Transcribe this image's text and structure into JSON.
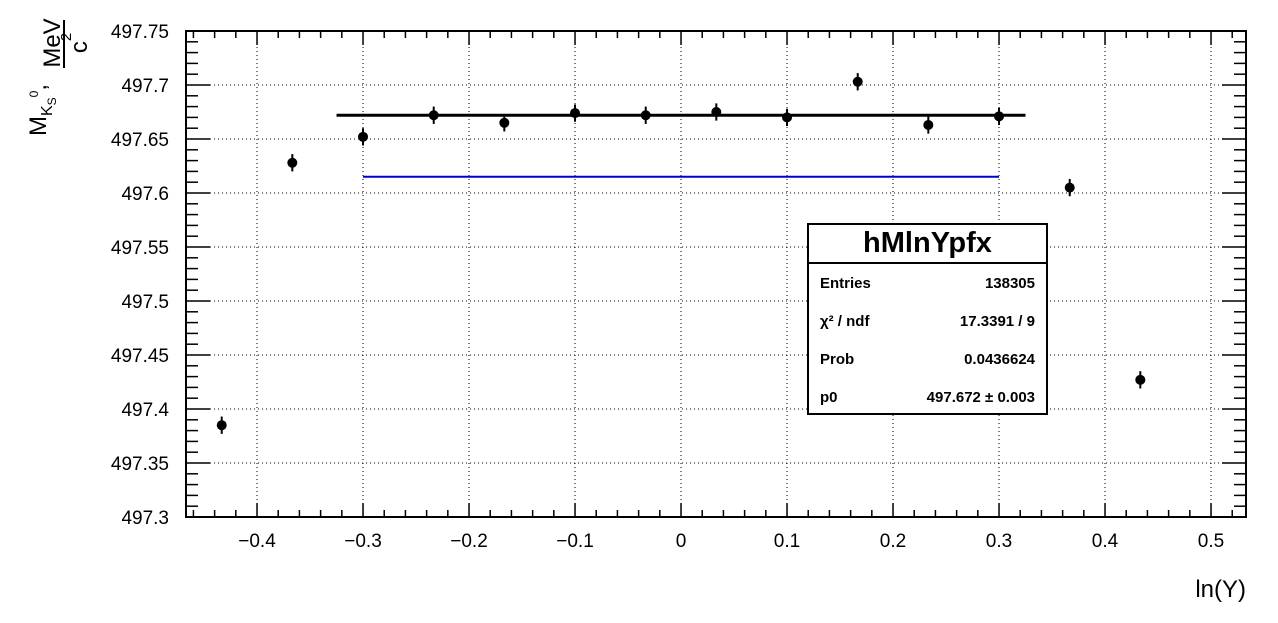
{
  "chart_data": {
    "type": "scatter",
    "title": "",
    "xlabel": "ln(Y)",
    "ylabel": {
      "main": "M",
      "sub": "K",
      "subsub": "S",
      "sup": "0",
      "sep": ",",
      "unit_num": "MeV",
      "unit_den": "c",
      "unit_den_sup": "2"
    },
    "xlim": [
      -0.467,
      0.533
    ],
    "ylim": [
      497.3,
      497.75
    ],
    "grid": true,
    "x_ticks": [
      -0.4,
      -0.3,
      -0.2,
      -0.1,
      0,
      0.1,
      0.2,
      0.3,
      0.4,
      0.5
    ],
    "x_tick_labels": [
      "−0.4",
      "−0.3",
      "−0.2",
      "−0.1",
      "0",
      "0.1",
      "0.2",
      "0.3",
      "0.4",
      "0.5"
    ],
    "y_ticks": [
      497.3,
      497.35,
      497.4,
      497.45,
      497.5,
      497.55,
      497.6,
      497.65,
      497.7,
      497.75
    ],
    "y_tick_labels": [
      "497.3",
      "497.35",
      "497.4",
      "497.45",
      "497.5",
      "497.55",
      "497.6",
      "497.65",
      "497.7",
      "497.75"
    ],
    "series": [
      {
        "x": [
          -0.4333,
          -0.3667,
          -0.3,
          -0.2333,
          -0.1667,
          -0.1,
          -0.0333,
          0.0333,
          0.1,
          0.1667,
          0.2333,
          0.3,
          0.3667,
          0.4333
        ],
        "y": [
          497.385,
          497.628,
          497.652,
          497.672,
          497.665,
          497.674,
          497.672,
          497.675,
          497.67,
          497.703,
          497.663,
          497.671,
          497.605,
          497.427
        ],
        "yerr": [
          0.008,
          0.008,
          0.008,
          0.008,
          0.008,
          0.008,
          0.008,
          0.008,
          0.008,
          0.008,
          0.008,
          0.008,
          0.008,
          0.008
        ],
        "color": "#000000"
      }
    ],
    "fit_line": {
      "x": [
        -0.325,
        0.325
      ],
      "y": 497.672,
      "color": "#000000"
    },
    "reference_line": {
      "x": [
        -0.3,
        0.3
      ],
      "y": 497.615,
      "color": "#0000cc"
    },
    "stats_box": {
      "title": "hMlnYpfx",
      "rows": [
        {
          "label": "Entries",
          "value": "138305"
        },
        {
          "label": "χ² / ndf",
          "value": "17.3391 / 9"
        },
        {
          "label": "Prob",
          "value": "0.0436624"
        },
        {
          "label": "p0",
          "value": "497.672 ± 0.003"
        }
      ]
    }
  }
}
